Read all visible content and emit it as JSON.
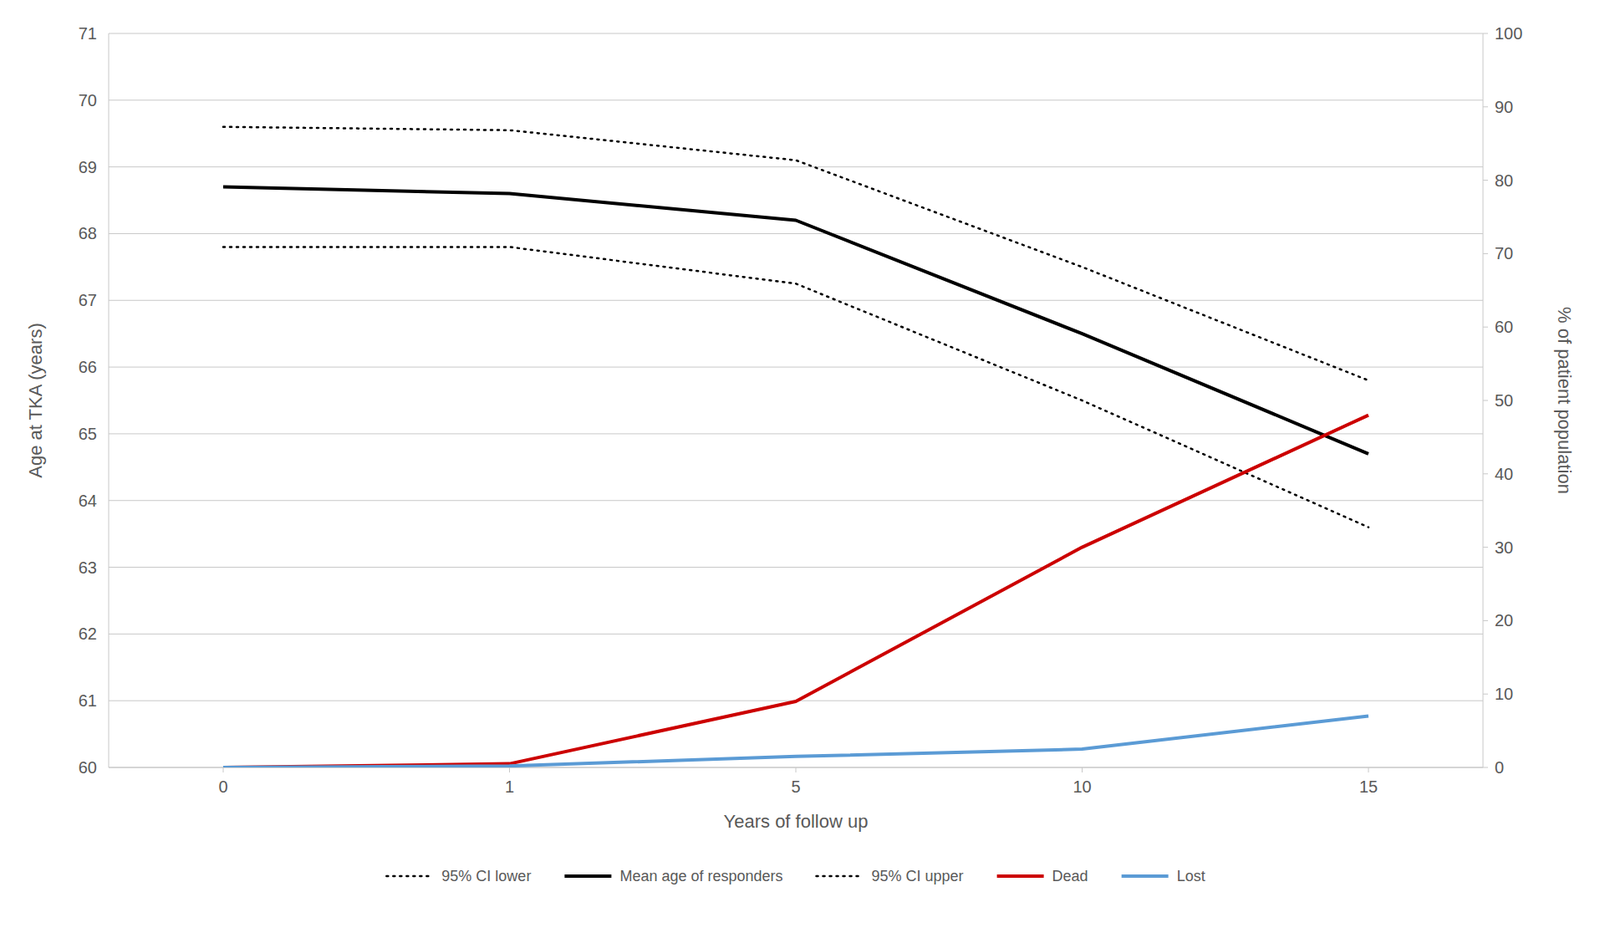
{
  "chart_data": {
    "type": "line",
    "xlabel": "Years of follow up",
    "ylabel": "Age at TKA (years)",
    "y2label": "% of patient population",
    "categories": [
      "0",
      "1",
      "5",
      "10",
      "15"
    ],
    "series": [
      {
        "name": "95% CI lower",
        "color": "#000000",
        "line_style": "dotted",
        "values": [
          67.8,
          67.8,
          67.25,
          65.5,
          63.6
        ]
      },
      {
        "name": "Mean age of responders",
        "color": "#000000",
        "line_style": "solid",
        "values": [
          68.7,
          68.6,
          68.2,
          66.5,
          64.7
        ]
      },
      {
        "name": "95% CI upper",
        "color": "#000000",
        "line_style": "dotted",
        "values": [
          69.6,
          69.55,
          69.1,
          67.5,
          65.8
        ]
      },
      {
        "name": "Dead",
        "color": "#cc0000",
        "line_style": "solid",
        "axis": "y2",
        "values": [
          0.0,
          0.5,
          9.0,
          30.0,
          48.0
        ]
      },
      {
        "name": "Lost",
        "color": "#5b9bd5",
        "line_style": "solid",
        "axis": "y2",
        "values": [
          0.0,
          0.2,
          1.5,
          2.5,
          7.0
        ]
      }
    ],
    "ylim": [
      60,
      71
    ],
    "yticks": [
      60,
      61,
      62,
      63,
      64,
      65,
      66,
      67,
      68,
      69,
      70,
      71
    ],
    "y2lim": [
      0,
      100
    ],
    "y2ticks": [
      0,
      10,
      20,
      30,
      40,
      50,
      60,
      70,
      80,
      90,
      100
    ],
    "grid": true,
    "legend": "bottom"
  }
}
